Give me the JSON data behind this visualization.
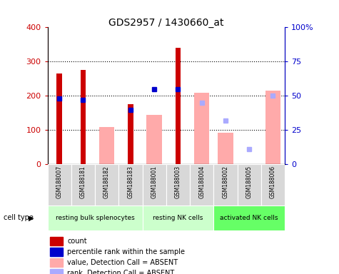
{
  "title": "GDS2957 / 1430660_at",
  "samples": [
    "GSM188007",
    "GSM188181",
    "GSM188182",
    "GSM188183",
    "GSM188001",
    "GSM188003",
    "GSM188004",
    "GSM188002",
    "GSM188005",
    "GSM188006"
  ],
  "count_values": [
    265,
    275,
    null,
    175,
    null,
    340,
    null,
    null,
    null,
    null
  ],
  "percentile_values": [
    48,
    47,
    null,
    40,
    55,
    55,
    null,
    null,
    null,
    null
  ],
  "absent_value_bars": [
    null,
    null,
    110,
    null,
    145,
    null,
    210,
    92,
    null,
    215
  ],
  "absent_rank_dots": [
    null,
    null,
    null,
    null,
    null,
    null,
    45,
    32,
    11,
    50
  ],
  "cell_groups": [
    {
      "label": "resting bulk splenocytes",
      "start": 0,
      "end": 4,
      "color": "#ccffcc"
    },
    {
      "label": "resting NK cells",
      "start": 4,
      "end": 7,
      "color": "#ccffcc"
    },
    {
      "label": "activated NK cells",
      "start": 7,
      "end": 10,
      "color": "#66ff66"
    }
  ],
  "ylim_left": [
    0,
    400
  ],
  "ylim_right": [
    0,
    100
  ],
  "yticks_left": [
    0,
    100,
    200,
    300,
    400
  ],
  "yticks_right": [
    0,
    25,
    50,
    75,
    100
  ],
  "ytick_labels_right": [
    "0",
    "25",
    "50",
    "75",
    "100%"
  ],
  "count_color": "#cc0000",
  "percentile_color": "#0000cc",
  "absent_value_color": "#ffaaaa",
  "absent_rank_color": "#aaaaff",
  "bg_color": "#ffffff",
  "grid_color": "#000000",
  "left_tick_color": "#cc0000",
  "right_tick_color": "#0000cc",
  "group_colors": [
    "#ccffcc",
    "#ccffcc",
    "#66ff66"
  ],
  "legend_items": [
    {
      "label": "count",
      "color": "#cc0000"
    },
    {
      "label": "percentile rank within the sample",
      "color": "#0000cc"
    },
    {
      "label": "value, Detection Call = ABSENT",
      "color": "#ffaaaa"
    },
    {
      "label": "rank, Detection Call = ABSENT",
      "color": "#aaaaff"
    }
  ]
}
